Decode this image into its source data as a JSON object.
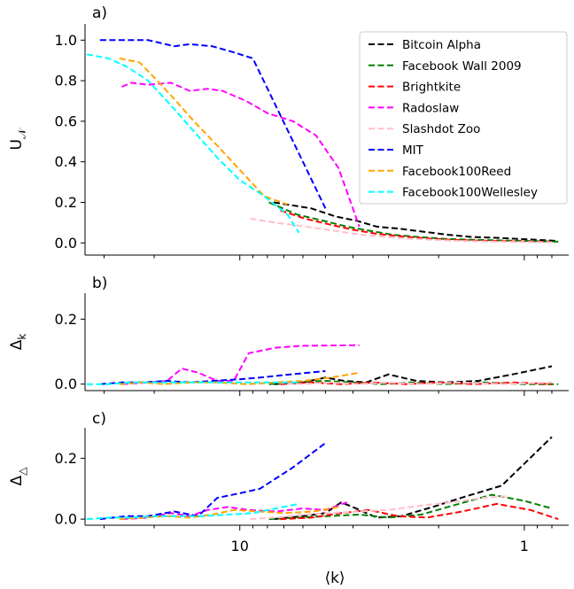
{
  "chart_data": [
    {
      "panel": "a)",
      "type": "line",
      "x_scale": "log",
      "x_reversed": true,
      "xlim": [
        35,
        0.75
      ],
      "ylim": [
        -0.06,
        1.08
      ],
      "ylabel": "U_𝒩",
      "yticks": [
        0.0,
        0.2,
        0.4,
        0.6,
        0.8,
        1.0
      ],
      "ytick_labels": [
        "0.0",
        "0.2",
        "0.4",
        "0.6",
        "0.8",
        "1.0"
      ],
      "legend": "top-right",
      "series": [
        {
          "name": "Bitcoin Alpha",
          "color": "#000000",
          "x": [
            7.6,
            5.6,
            4.6,
            3.9,
            3.3,
            2.75,
            2.25,
            1.85,
            1.55,
            1.25,
            1.05,
            0.9,
            0.76
          ],
          "y": [
            0.2,
            0.17,
            0.13,
            0.11,
            0.08,
            0.07,
            0.055,
            0.04,
            0.03,
            0.025,
            0.02,
            0.015,
            0.01
          ]
        },
        {
          "name": "Facebook Wall 2009",
          "color": "#008000",
          "x": [
            7.9,
            6.3,
            5.1,
            4.2,
            3.5,
            2.9,
            2.4,
            1.9,
            1.5,
            1.2,
            1.0,
            0.88,
            0.76
          ],
          "y": [
            0.2,
            0.14,
            0.11,
            0.08,
            0.06,
            0.04,
            0.03,
            0.02,
            0.015,
            0.012,
            0.01,
            0.008,
            0.006
          ]
        },
        {
          "name": "Brightkite",
          "color": "#ff0000",
          "x": [
            7.2,
            5.9,
            4.8,
            4.0,
            3.3,
            2.7,
            2.2,
            1.8,
            1.45,
            1.15,
            0.95,
            0.8
          ],
          "y": [
            0.16,
            0.12,
            0.09,
            0.065,
            0.045,
            0.032,
            0.022,
            0.015,
            0.011,
            0.008,
            0.006,
            0.005
          ]
        },
        {
          "name": "Radoslaw",
          "color": "#ff00ff",
          "x": [
            26.0,
            24.0,
            21.0,
            17.5,
            15.0,
            13.0,
            11.5,
            9.5,
            8.0,
            6.5,
            5.4,
            4.5,
            3.8
          ],
          "y": [
            0.77,
            0.79,
            0.78,
            0.79,
            0.75,
            0.76,
            0.75,
            0.7,
            0.64,
            0.6,
            0.53,
            0.37,
            0.08
          ]
        },
        {
          "name": "Slashdot Zoo",
          "color": "#ffc0cb",
          "x": [
            9.2,
            7.5,
            6.2,
            5.2,
            4.4,
            3.7,
            3.1,
            2.6,
            2.1,
            1.7,
            1.35,
            1.05,
            0.8
          ],
          "y": [
            0.12,
            0.1,
            0.085,
            0.07,
            0.055,
            0.04,
            0.03,
            0.022,
            0.015,
            0.01,
            0.007,
            0.005,
            0.003
          ]
        },
        {
          "name": "MIT",
          "color": "#0000ff",
          "x": [
            31.0,
            24.5,
            21.0,
            17.0,
            15.0,
            12.5,
            10.5,
            9.0,
            6.0,
            5.0
          ],
          "y": [
            1.0,
            1.0,
            1.0,
            0.97,
            0.98,
            0.97,
            0.94,
            0.91,
            0.4,
            0.17
          ]
        },
        {
          "name": "Facebook100Reed",
          "color": "#ffa500",
          "x": [
            26.5,
            22.5,
            19.5,
            17.0,
            14.5,
            12.0,
            10.0,
            8.2,
            6.8
          ],
          "y": [
            0.91,
            0.89,
            0.8,
            0.71,
            0.6,
            0.48,
            0.36,
            0.23,
            0.19
          ]
        },
        {
          "name": "Facebook100Wellesley",
          "color": "#00ffff",
          "x": [
            34.5,
            29.0,
            25.0,
            21.0,
            17.5,
            14.5,
            12.0,
            10.0,
            8.2,
            6.8,
            6.2
          ],
          "y": [
            0.93,
            0.91,
            0.87,
            0.8,
            0.68,
            0.55,
            0.42,
            0.31,
            0.23,
            0.14,
            0.05
          ]
        }
      ]
    },
    {
      "panel": "b)",
      "type": "line",
      "x_scale": "log",
      "x_reversed": true,
      "xlim": [
        35,
        0.75
      ],
      "ylim": [
        -0.02,
        0.28
      ],
      "ylabel": "Δ_k",
      "yticks": [
        0.0,
        0.2
      ],
      "ytick_labels": [
        "0.0",
        "0.2"
      ],
      "series": [
        {
          "name": "Bitcoin Alpha",
          "color": "#000000",
          "x": [
            7.6,
            6.0,
            5.0,
            4.3,
            3.6,
            3.0,
            2.4,
            1.9,
            1.45,
            1.1,
            0.8
          ],
          "y": [
            0.0,
            0.005,
            0.02,
            0.01,
            0.005,
            0.03,
            0.01,
            0.005,
            0.01,
            0.03,
            0.055
          ]
        },
        {
          "name": "Facebook Wall 2009",
          "color": "#008000",
          "x": [
            7.9,
            6.3,
            5.0,
            4.0,
            3.2,
            2.5,
            1.9,
            1.4,
            1.0,
            0.76
          ],
          "y": [
            0.0,
            0.005,
            0.01,
            0.005,
            0.0,
            0.005,
            0.0,
            0.005,
            0.0,
            0.0
          ]
        },
        {
          "name": "Brightkite",
          "color": "#ff0000",
          "x": [
            7.2,
            5.6,
            4.4,
            3.4,
            2.6,
            2.0,
            1.5,
            1.1,
            0.8
          ],
          "y": [
            0.0,
            0.005,
            0.0,
            0.005,
            0.0,
            0.005,
            0.0,
            0.005,
            0.0
          ]
        },
        {
          "name": "Radoslaw",
          "color": "#ff00ff",
          "x": [
            26.0,
            21.0,
            18.0,
            16.0,
            14.0,
            12.0,
            10.5,
            9.3,
            7.5,
            6.0,
            3.8
          ],
          "y": [
            0.0,
            0.005,
            0.01,
            0.048,
            0.035,
            0.01,
            0.01,
            0.095,
            0.112,
            0.118,
            0.12
          ]
        },
        {
          "name": "Slashdot Zoo",
          "color": "#ffc0cb",
          "x": [
            9.2,
            7.5,
            6.0,
            4.8,
            3.8,
            3.0,
            2.3,
            1.7,
            1.2,
            0.8
          ],
          "y": [
            0.0,
            0.005,
            0.0,
            0.005,
            0.0,
            0.005,
            0.0,
            0.005,
            0.0,
            0.005
          ]
        },
        {
          "name": "MIT",
          "color": "#0000ff",
          "x": [
            31.0,
            26.0,
            22.0,
            18.0,
            15.0,
            12.5,
            10.0,
            8.5,
            7.0,
            5.0
          ],
          "y": [
            0.0,
            0.005,
            0.005,
            0.01,
            0.005,
            0.01,
            0.015,
            0.02,
            0.028,
            0.04
          ]
        },
        {
          "name": "Facebook100Reed",
          "color": "#ffa500",
          "x": [
            26.5,
            22.0,
            18.5,
            15.0,
            12.0,
            9.5,
            7.5,
            6.0,
            4.8,
            3.8
          ],
          "y": [
            0.0,
            0.005,
            0.0,
            0.005,
            0.005,
            0.0,
            0.005,
            0.01,
            0.02,
            0.035
          ]
        },
        {
          "name": "Facebook100Wellesley",
          "color": "#00ffff",
          "x": [
            34.5,
            29.0,
            24.0,
            20.0,
            16.5,
            13.5,
            11.0,
            9.0,
            7.5,
            6.2
          ],
          "y": [
            0.0,
            0.0,
            0.005,
            0.005,
            0.005,
            0.005,
            0.005,
            0.005,
            0.005,
            0.005
          ]
        }
      ]
    },
    {
      "panel": "c)",
      "type": "line",
      "x_scale": "log",
      "x_reversed": true,
      "xlim": [
        35,
        0.75
      ],
      "ylim": [
        -0.02,
        0.3
      ],
      "ylabel": "Δ_△",
      "yticks": [
        0.0,
        0.2
      ],
      "ytick_labels": [
        "0.0",
        "0.2"
      ],
      "xlabel": "⟨k⟩",
      "xticks": [
        10,
        1
      ],
      "xtick_labels": [
        "10",
        "1"
      ],
      "series": [
        {
          "name": "Bitcoin Alpha",
          "color": "#000000",
          "x": [
            7.6,
            6.0,
            5.0,
            4.4,
            3.9,
            3.3,
            2.7,
            2.1,
            1.6,
            1.2,
            0.8
          ],
          "y": [
            0.0,
            0.01,
            0.02,
            0.055,
            0.035,
            0.005,
            0.01,
            0.04,
            0.075,
            0.11,
            0.27
          ]
        },
        {
          "name": "Facebook Wall 2009",
          "color": "#008000",
          "x": [
            7.9,
            6.2,
            4.9,
            3.8,
            3.0,
            2.3,
            1.7,
            1.3,
            1.0,
            0.8
          ],
          "y": [
            0.0,
            0.005,
            0.01,
            0.015,
            0.005,
            0.015,
            0.05,
            0.08,
            0.06,
            0.035
          ]
        },
        {
          "name": "Brightkite",
          "color": "#ff0000",
          "x": [
            7.2,
            5.6,
            4.4,
            3.5,
            2.8,
            2.2,
            1.65,
            1.25,
            0.95,
            0.76
          ],
          "y": [
            0.0,
            0.005,
            0.02,
            0.03,
            0.01,
            0.005,
            0.025,
            0.05,
            0.03,
            0.0
          ]
        },
        {
          "name": "Radoslaw",
          "color": "#ff00ff",
          "x": [
            26.0,
            21.0,
            17.5,
            15.0,
            13.0,
            11.0,
            9.3,
            7.5,
            6.0,
            5.0,
            4.2
          ],
          "y": [
            0.0,
            0.005,
            0.02,
            0.01,
            0.03,
            0.04,
            0.03,
            0.025,
            0.035,
            0.03,
            0.055
          ]
        },
        {
          "name": "Slashdot Zoo",
          "color": "#ffc0cb",
          "x": [
            9.2,
            7.5,
            6.0,
            4.8,
            3.8,
            3.0,
            2.3,
            1.8,
            1.4,
            1.15
          ],
          "y": [
            0.0,
            0.005,
            0.015,
            0.02,
            0.025,
            0.03,
            0.045,
            0.055,
            0.07,
            0.075
          ]
        },
        {
          "name": "MIT",
          "color": "#0000ff",
          "x": [
            31.0,
            25.0,
            21.0,
            17.0,
            14.0,
            12.0,
            10.0,
            8.5,
            6.5,
            5.0
          ],
          "y": [
            0.0,
            0.01,
            0.01,
            0.025,
            0.01,
            0.07,
            0.085,
            0.1,
            0.17,
            0.25
          ]
        },
        {
          "name": "Facebook100Reed",
          "color": "#ffa500",
          "x": [
            26.5,
            22.0,
            18.0,
            15.0,
            12.5,
            10.5,
            8.5,
            7.0,
            5.5,
            4.5
          ],
          "y": [
            0.0,
            0.005,
            0.01,
            0.005,
            0.015,
            0.03,
            0.025,
            0.02,
            0.025,
            0.04
          ]
        },
        {
          "name": "Facebook100Wellesley",
          "color": "#00ffff",
          "x": [
            34.5,
            29.0,
            24.0,
            20.0,
            16.5,
            13.5,
            11.0,
            9.0,
            7.5,
            6.2
          ],
          "y": [
            0.0,
            0.005,
            0.005,
            0.01,
            0.01,
            0.01,
            0.015,
            0.02,
            0.035,
            0.05
          ]
        }
      ]
    }
  ]
}
